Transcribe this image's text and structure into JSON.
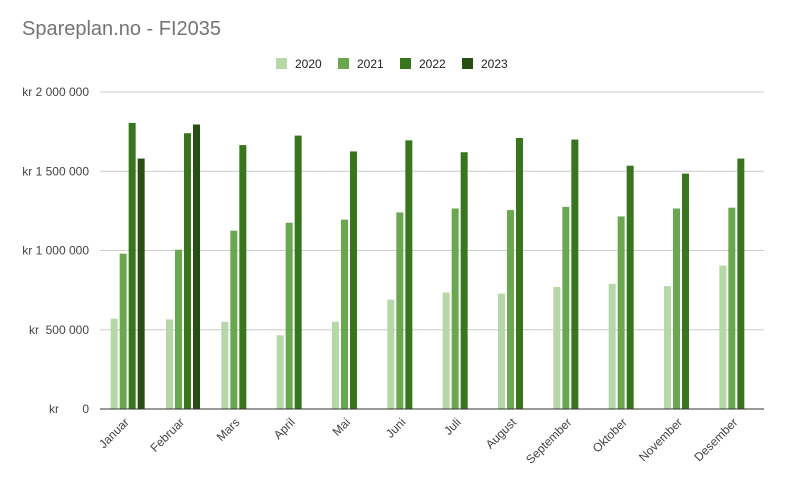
{
  "chart_data": {
    "type": "bar",
    "title": "Spareplan.no - FI2035",
    "xlabel": "",
    "ylabel": "",
    "ylim": [
      0,
      2000000
    ],
    "yticks": [
      0,
      500000,
      1000000,
      1500000,
      2000000
    ],
    "ytick_labels": [
      "kr       0",
      "kr  500 000",
      "kr 1 000 000",
      "kr 1 500 000",
      "kr 2 000 000"
    ],
    "grid": true,
    "legend_position": "top-center",
    "categories": [
      "Januar",
      "Februar",
      "Mars",
      "April",
      "Mai",
      "Juni",
      "Juli",
      "August",
      "September",
      "Oktober",
      "November",
      "Desember"
    ],
    "series": [
      {
        "name": "2020",
        "color": "#b6d7a8",
        "values": [
          570000,
          565000,
          550000,
          465000,
          550000,
          690000,
          735000,
          728000,
          770000,
          790000,
          775000,
          905000
        ]
      },
      {
        "name": "2021",
        "color": "#6aa84f",
        "values": [
          980000,
          1005000,
          1125000,
          1175000,
          1195000,
          1240000,
          1265000,
          1255000,
          1275000,
          1215000,
          1265000,
          1270000
        ]
      },
      {
        "name": "2022",
        "color": "#38761d",
        "values": [
          1805000,
          1740000,
          1665000,
          1725000,
          1625000,
          1695000,
          1620000,
          1710000,
          1700000,
          1535000,
          1485000,
          1580000
        ]
      },
      {
        "name": "2023",
        "color": "#274e13",
        "values": [
          1580000,
          1795000,
          null,
          null,
          null,
          null,
          null,
          null,
          null,
          null,
          null,
          null
        ]
      }
    ]
  }
}
